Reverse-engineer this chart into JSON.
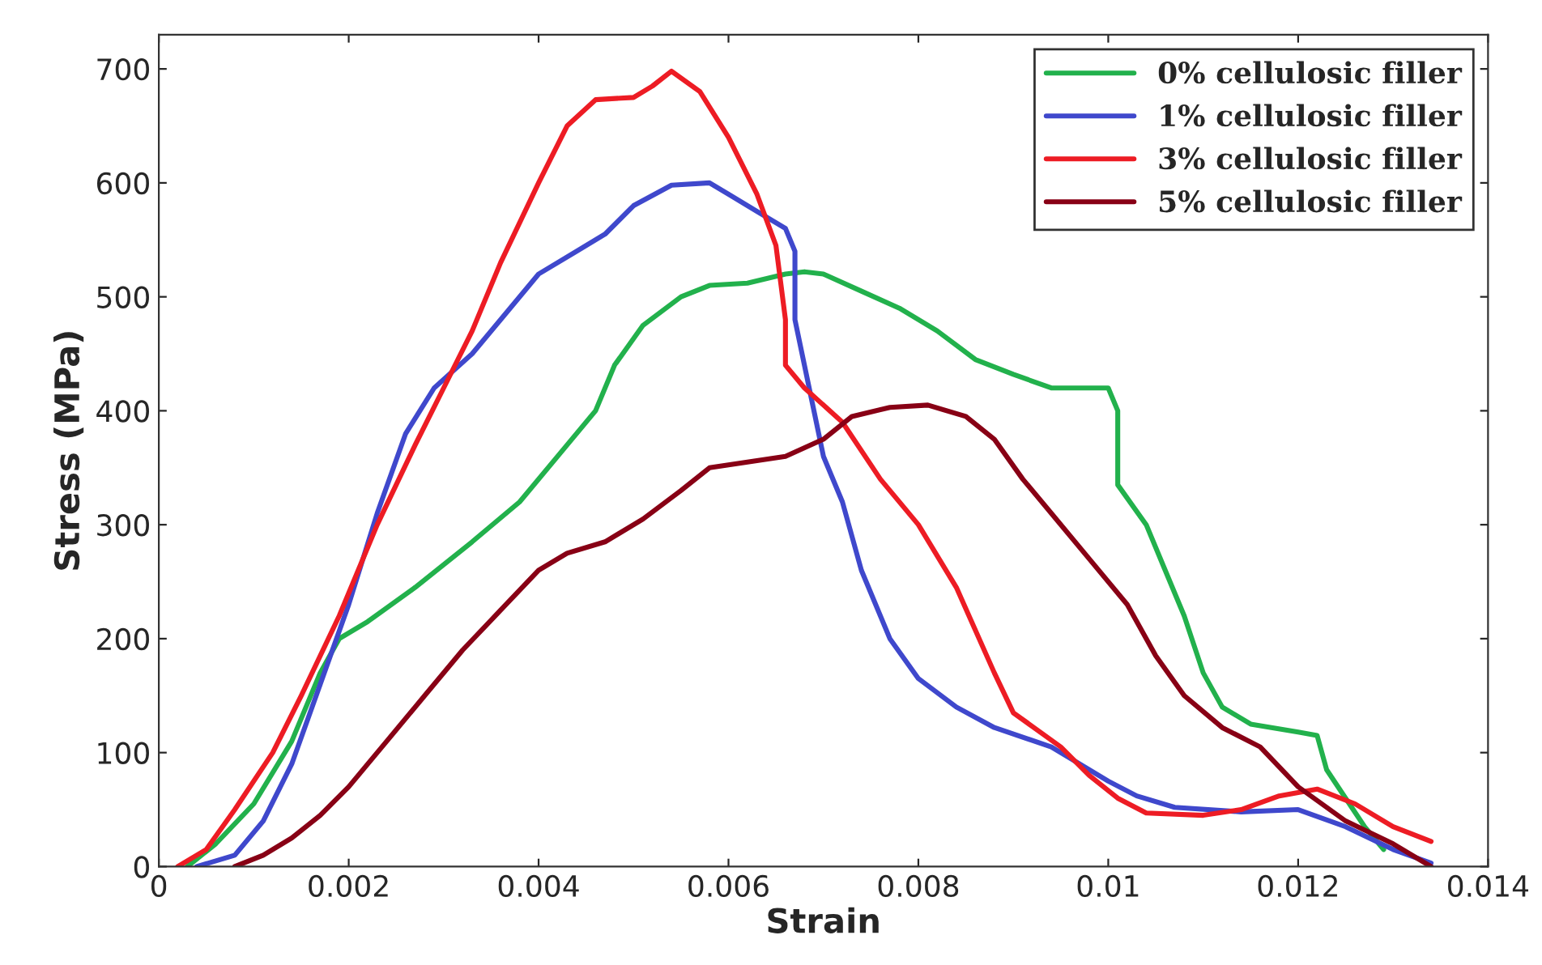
{
  "chart_data": {
    "type": "line",
    "xlabel": "Strain",
    "ylabel": "Stress (MPa)",
    "xlim": [
      0,
      0.014
    ],
    "ylim": [
      0,
      730
    ],
    "xticks": [
      0,
      0.002,
      0.004,
      0.006,
      0.008,
      0.01,
      0.012,
      0.014
    ],
    "yticks": [
      0,
      100,
      200,
      300,
      400,
      500,
      600,
      700
    ],
    "grid": false,
    "legend": "top right",
    "line_style": "solid",
    "marker": "none",
    "series": [
      {
        "name": "0% cellulosic filler",
        "color": "#22b14c",
        "x": [
          0.0003,
          0.0006,
          0.001,
          0.0014,
          0.0017,
          0.0019,
          0.0022,
          0.0027,
          0.0033,
          0.0038,
          0.0043,
          0.0046,
          0.0048,
          0.0051,
          0.0055,
          0.0058,
          0.0062,
          0.0066,
          0.0068,
          0.007,
          0.0074,
          0.0078,
          0.0082,
          0.0086,
          0.009,
          0.0094,
          0.01,
          0.0101,
          0.0101,
          0.0104,
          0.0106,
          0.0108,
          0.011,
          0.0112,
          0.0115,
          0.012,
          0.0122,
          0.0123,
          0.0125,
          0.0127,
          0.0129
        ],
        "values": [
          0,
          20,
          55,
          110,
          170,
          200,
          215,
          245,
          285,
          320,
          370,
          400,
          440,
          475,
          500,
          510,
          512,
          520,
          522,
          520,
          505,
          490,
          470,
          445,
          432,
          420,
          420,
          400,
          335,
          300,
          260,
          220,
          170,
          140,
          125,
          118,
          115,
          85,
          60,
          35,
          15
        ]
      },
      {
        "name": "1% cellulosic filler",
        "color": "#3f48cc",
        "x": [
          0.0004,
          0.0008,
          0.0011,
          0.0014,
          0.0017,
          0.002,
          0.0023,
          0.0026,
          0.0029,
          0.0033,
          0.0037,
          0.004,
          0.0044,
          0.0047,
          0.005,
          0.0054,
          0.0058,
          0.006,
          0.0063,
          0.0066,
          0.0067,
          0.0067,
          0.0069,
          0.007,
          0.0072,
          0.0074,
          0.0077,
          0.008,
          0.0084,
          0.0088,
          0.0094,
          0.01,
          0.0103,
          0.0107,
          0.0114,
          0.012,
          0.0125,
          0.013,
          0.0134
        ],
        "values": [
          0,
          10,
          40,
          90,
          160,
          230,
          310,
          380,
          420,
          450,
          490,
          520,
          540,
          555,
          580,
          598,
          600,
          590,
          575,
          560,
          540,
          480,
          400,
          360,
          320,
          260,
          200,
          165,
          140,
          122,
          105,
          75,
          62,
          52,
          48,
          50,
          35,
          15,
          3
        ]
      },
      {
        "name": "3% cellulosic filler",
        "color": "#ed1c24",
        "x": [
          0.0002,
          0.0005,
          0.0008,
          0.0012,
          0.0015,
          0.0019,
          0.0023,
          0.0027,
          0.003,
          0.0033,
          0.0036,
          0.004,
          0.0043,
          0.0046,
          0.005,
          0.0052,
          0.0054,
          0.0057,
          0.006,
          0.0063,
          0.0065,
          0.0066,
          0.0066,
          0.0068,
          0.0072,
          0.0076,
          0.008,
          0.0084,
          0.0088,
          0.009,
          0.0095,
          0.0098,
          0.0101,
          0.0104,
          0.011,
          0.0114,
          0.0118,
          0.0122,
          0.0126,
          0.013,
          0.0134
        ],
        "values": [
          0,
          15,
          50,
          100,
          150,
          220,
          300,
          370,
          420,
          470,
          530,
          600,
          650,
          673,
          675,
          685,
          698,
          680,
          640,
          590,
          545,
          480,
          440,
          420,
          390,
          340,
          300,
          245,
          170,
          135,
          105,
          80,
          60,
          47,
          45,
          50,
          62,
          68,
          55,
          35,
          22
        ]
      },
      {
        "name": "5% cellulosic filler",
        "color": "#880015",
        "x": [
          0.0008,
          0.0011,
          0.0014,
          0.0017,
          0.002,
          0.0024,
          0.0028,
          0.0032,
          0.0036,
          0.004,
          0.0043,
          0.0047,
          0.0051,
          0.0055,
          0.0058,
          0.0062,
          0.0066,
          0.007,
          0.0073,
          0.0077,
          0.0081,
          0.0085,
          0.0088,
          0.0091,
          0.0094,
          0.0098,
          0.0102,
          0.0105,
          0.0108,
          0.0112,
          0.0116,
          0.012,
          0.0125,
          0.013,
          0.0134
        ],
        "values": [
          0,
          10,
          25,
          45,
          70,
          110,
          150,
          190,
          225,
          260,
          275,
          285,
          305,
          330,
          350,
          355,
          360,
          375,
          395,
          403,
          405,
          395,
          375,
          340,
          310,
          270,
          230,
          185,
          150,
          122,
          105,
          70,
          40,
          20,
          0
        ]
      }
    ]
  }
}
